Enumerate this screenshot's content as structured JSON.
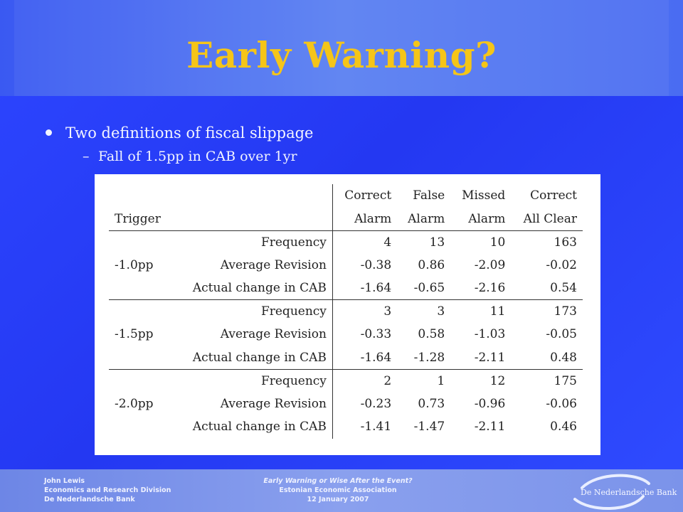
{
  "slide": {
    "title": "Early Warning?",
    "bullet": "Two definitions of fiscal slippage",
    "sub_bullet": "Fall of 1.5pp in CAB over 1yr"
  },
  "table": {
    "header_row1": [
      "Correct",
      "False",
      "Missed",
      "Correct"
    ],
    "header_row2": [
      "Alarm",
      "Alarm",
      "Alarm",
      "All Clear"
    ],
    "trigger_header": "Trigger",
    "groups": [
      {
        "trigger": "-1.0pp",
        "rows": [
          {
            "label": "Frequency",
            "values": [
              "4",
              "13",
              "10",
              "163"
            ]
          },
          {
            "label": "Average Revision",
            "values": [
              "-0.38",
              "0.86",
              "-2.09",
              "-0.02"
            ]
          },
          {
            "label": "Actual change in CAB",
            "values": [
              "-1.64",
              "-0.65",
              "-2.16",
              "0.54"
            ]
          }
        ]
      },
      {
        "trigger": "-1.5pp",
        "rows": [
          {
            "label": "Frequency",
            "values": [
              "3",
              "3",
              "11",
              "173"
            ]
          },
          {
            "label": "Average Revision",
            "values": [
              "-0.33",
              "0.58",
              "-1.03",
              "-0.05"
            ]
          },
          {
            "label": "Actual change in CAB",
            "values": [
              "-1.64",
              "-1.28",
              "-2.11",
              "0.48"
            ]
          }
        ]
      },
      {
        "trigger": "-2.0pp",
        "rows": [
          {
            "label": "Frequency",
            "values": [
              "2",
              "1",
              "12",
              "175"
            ]
          },
          {
            "label": "Average Revision",
            "values": [
              "-0.23",
              "0.73",
              "-0.96",
              "-0.06"
            ]
          },
          {
            "label": "Actual change in CAB",
            "values": [
              "-1.41",
              "-1.47",
              "-2.11",
              "0.46"
            ]
          }
        ]
      }
    ]
  },
  "footer": {
    "left": [
      "John Lewis",
      "Economics and Research Division",
      "De Nederlandsche Bank"
    ],
    "center": [
      "Early Warning or Wise After the Event?",
      "Estonian Economic Association",
      "12 January 2007"
    ],
    "logo_text": "De Nederlandsche Bank"
  },
  "colors": {
    "background": "#2b3ff0",
    "title": "#f5c518",
    "text": "#f2f4ff"
  }
}
